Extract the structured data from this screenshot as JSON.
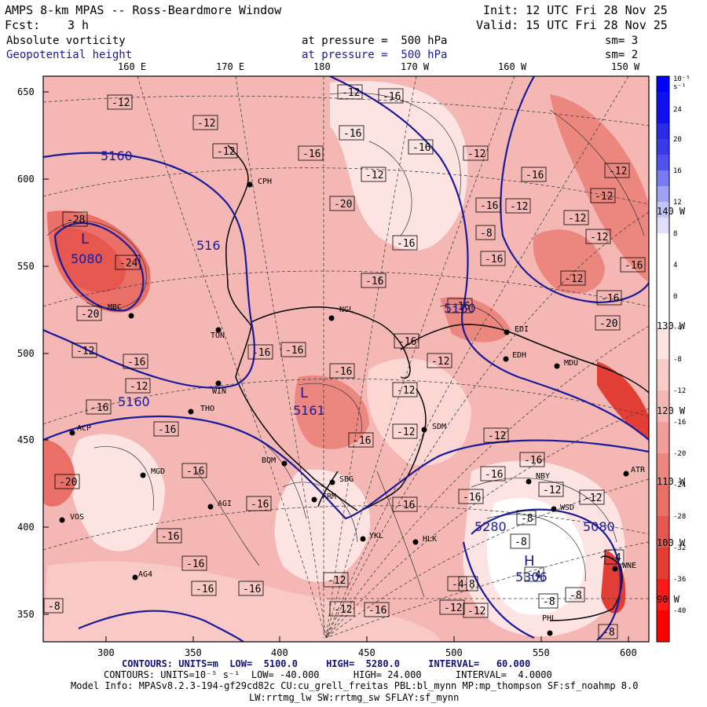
{
  "header": {
    "title": "AMPS 8-km MPAS -- Ross-Beardmore Window",
    "fcst_label": "Fcst:",
    "fcst_value": "3 h",
    "init": "Init: 12 UTC Fri 28 Nov 25",
    "valid": "Valid: 15 UTC Fri 28 Nov 25",
    "field1_name": "Absolute vorticity",
    "field1_level": "at pressure =  500 hPa",
    "field1_sm": "sm= 3",
    "field2_name": "Geopotential height",
    "field2_level": "at pressure =  500 hPa",
    "field2_sm": "sm= 2"
  },
  "colors": {
    "height_contour": "#1a1a9c",
    "shade_base": "#f4b7b3",
    "shade_strong": "#e9433a",
    "shade_light": "#fde4e2",
    "dot": "#000000"
  },
  "axes": {
    "y_labels": [
      "650",
      "600",
      "550",
      "500",
      "450",
      "400",
      "350"
    ],
    "x_labels": [
      "300",
      "350",
      "400",
      "450",
      "500",
      "550",
      "600"
    ],
    "lon_labels_top": [
      "160 E",
      "170 E",
      "180",
      "170 W",
      "160 W",
      "150 W"
    ],
    "lon_labels_right": [
      "140 W",
      "130 W",
      "120 W",
      "110 W",
      "100 W",
      "90 W"
    ]
  },
  "colorbar": {
    "unit": "10⁻⁵ s⁻¹",
    "levels": [
      "24",
      "20",
      "16",
      "12",
      "8",
      "4",
      "0",
      "-4",
      "-8",
      "-12",
      "-16",
      "-20",
      "-24",
      "-28",
      "-32",
      "-36",
      "-40"
    ],
    "colors": [
      "#0000ff",
      "#2a2ae8",
      "#5151f0",
      "#7a7af2",
      "#a2a2f5",
      "#d0d0fb",
      "#ffffff",
      "#ffffff",
      "#fde4e2",
      "#f8cdc9",
      "#f4b7b3",
      "#f09e99",
      "#ec8780",
      "#e96f67",
      "#e5574f",
      "#e23e36",
      "#ff1a1a",
      "#ff0000"
    ]
  },
  "map": {
    "stations": [
      {
        "code": "CPH"
      },
      {
        "code": "MBC"
      },
      {
        "code": "TON"
      },
      {
        "code": "WIN"
      },
      {
        "code": "THO"
      },
      {
        "code": "ACP"
      },
      {
        "code": "MGD"
      },
      {
        "code": "AGI"
      },
      {
        "code": "VOS"
      },
      {
        "code": "AG4"
      },
      {
        "code": "BOM"
      },
      {
        "code": "SBG"
      },
      {
        "code": "FRM"
      },
      {
        "code": "NGL"
      },
      {
        "code": "SDM"
      },
      {
        "code": "YKL"
      },
      {
        "code": "HLK"
      },
      {
        "code": "EDH"
      },
      {
        "code": "MDU"
      },
      {
        "code": "NBY"
      },
      {
        "code": "WSD"
      },
      {
        "code": "ATR"
      },
      {
        "code": "PHL"
      },
      {
        "code": "WNE"
      },
      {
        "code": "EDI"
      }
    ],
    "height_labels": [
      "5160",
      "5080",
      "516",
      "5160",
      "5161",
      "5160",
      "5280",
      "5080",
      "5306"
    ],
    "low_markers": [
      "L",
      "L",
      "H"
    ],
    "vort_labels": [
      "-12",
      "-12",
      "-12",
      "-16",
      "-12",
      "-16",
      "-16",
      "-12",
      "-12",
      "-16",
      "-16",
      "-12",
      "-12",
      "-12",
      "-12",
      "-16",
      "-8",
      "-12",
      "-16",
      "-16",
      "-12",
      "-16",
      "-20",
      "-20",
      "-16",
      "-16",
      "-16",
      "-16",
      "-28",
      "-24",
      "-20",
      "-12",
      "-16",
      "-12",
      "-16",
      "-16",
      "-16",
      "-16",
      "-16",
      "-16",
      "-16",
      "-16",
      "-12",
      "-12",
      "-16",
      "-8",
      "-12",
      "-12",
      "-16",
      "-16",
      "-16",
      "-16",
      "-20",
      "-16",
      "-16",
      "-16",
      "-16",
      "-12",
      "-12",
      "-12",
      "-12",
      "-8",
      "-12",
      "-8",
      "-8",
      "-4",
      "-8",
      "-8",
      "-4",
      "-4",
      "-8",
      "-12"
    ]
  },
  "footer": {
    "line1": "CONTOURS: UNITS=m  LOW=  5100.0     HIGH=  5280.0     INTERVAL=   60.000",
    "line2": "CONTOURS: UNITS=10⁻⁵ s⁻¹  LOW= -40.000      HIGH= 24.000      INTERVAL=  4.0000",
    "line3": "Model Info: MPASv8.2.3-194-gf29cd82c CU:cu_grell_freitas PBL:bl_mynn MP:mp_thompson SF:sf_noahmp 8.0",
    "line4": "LW:rrtmg_lw SW:rrtmg_sw SFLAY:sf_mynn"
  }
}
